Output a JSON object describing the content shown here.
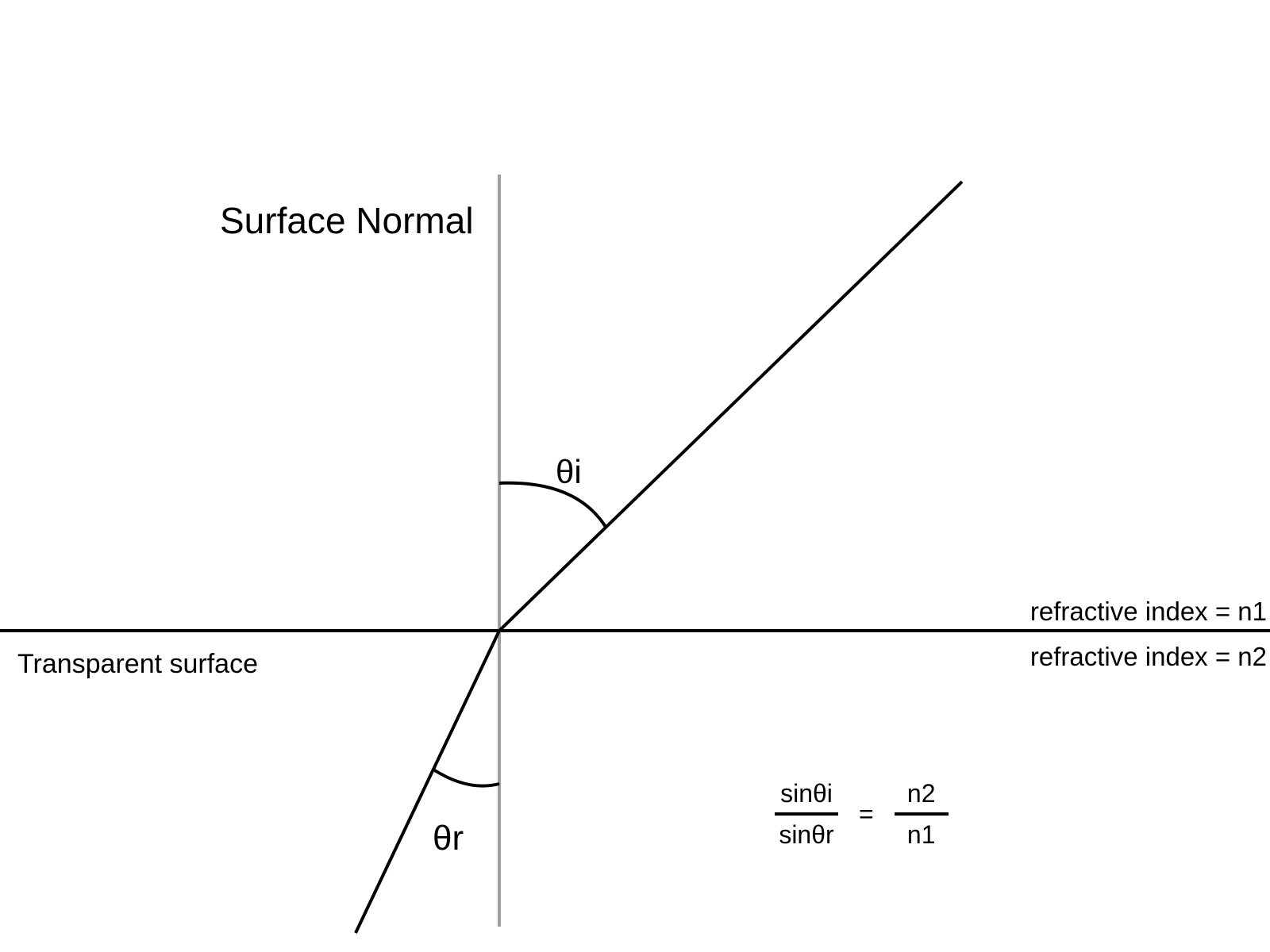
{
  "diagram": {
    "normal_label": "Surface Normal",
    "surface_label": "Transparent surface",
    "medium_top_label": "refractive index = n1",
    "medium_bottom_label": "refractive index = n2",
    "angle_incidence_label": "θi",
    "angle_refraction_label": "θr",
    "formula": {
      "left_numerator": "sinθi",
      "left_denominator": "sinθr",
      "equals": "=",
      "right_numerator": "n2",
      "right_denominator": "n1"
    },
    "colors": {
      "line": "#000000",
      "normal_line": "#a0a0a0",
      "background": "#ffffff"
    }
  }
}
